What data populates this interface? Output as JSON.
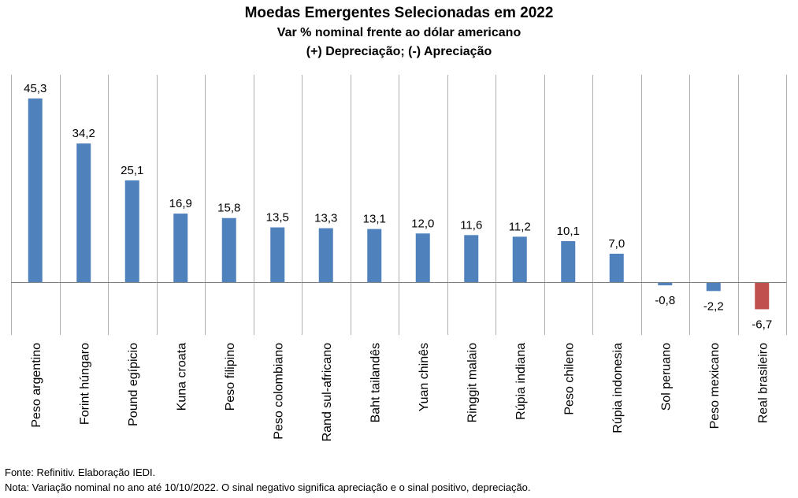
{
  "chart_data": {
    "type": "bar",
    "title": "Moedas Emergentes Selecionadas em 2022",
    "subtitle": "Var % nominal frente ao dólar americano",
    "subtitle2": "(+) Depreciação; (-) Apreciação",
    "categories": [
      "Peso argentino",
      "Forint húngaro",
      "Pound egípicio",
      "Kuna croata",
      "Peso filipino",
      "Peso colombiano",
      "Rand sul-africano",
      "Baht tailandês",
      "Yuan chinês",
      "Ringgit malaio",
      "Rúpia indiana",
      "Peso chileno",
      "Rúpia indonesia",
      "Sol peruano",
      "Peso mexicano",
      "Real brasileiro"
    ],
    "values": [
      45.3,
      34.2,
      25.1,
      16.9,
      15.8,
      13.5,
      13.3,
      13.1,
      12.0,
      11.6,
      11.2,
      10.1,
      7.0,
      -0.8,
      -2.2,
      -6.7
    ],
    "value_labels": [
      "45,3",
      "34,2",
      "25,1",
      "16,9",
      "15,8",
      "13,5",
      "13,3",
      "13,1",
      "12,0",
      "11,6",
      "11,2",
      "10,1",
      "7,0",
      "-0,8",
      "-2,2",
      "-6,7"
    ],
    "colors": [
      "#4F81BD",
      "#4F81BD",
      "#4F81BD",
      "#4F81BD",
      "#4F81BD",
      "#4F81BD",
      "#4F81BD",
      "#4F81BD",
      "#4F81BD",
      "#4F81BD",
      "#4F81BD",
      "#4F81BD",
      "#4F81BD",
      "#4F81BD",
      "#4F81BD",
      "#C0504D"
    ],
    "gridlines": "vertical category separators",
    "legend": "none"
  },
  "footer": {
    "source": "Fonte: Refinitiv. Elaboração IEDI.",
    "note": "Nota: Variação nominal no ano até 10/10/2022. O sinal negativo significa apreciação e o sinal positivo, depreciação."
  }
}
